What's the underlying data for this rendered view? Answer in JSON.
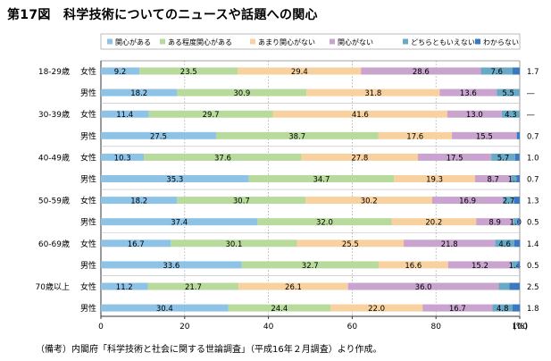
{
  "chart_data": {
    "type": "bar",
    "orientation": "horizontal",
    "stacked": true,
    "title": "第17図　科学技術についてのニュースや話題への関心",
    "xlabel": "",
    "ylabel": "",
    "xlim": [
      0,
      100
    ],
    "x_ticks": [
      "0",
      "20",
      "40",
      "60",
      "80",
      "100"
    ],
    "unit": "(%)",
    "legend_position": "top",
    "series": [
      {
        "name": "関心がある",
        "color": "#8ec3e6"
      },
      {
        "name": "ある程度関心がある",
        "color": "#b8da9c"
      },
      {
        "name": "あまり関心がない",
        "color": "#f7d2a0"
      },
      {
        "name": "関心がない",
        "color": "#c8a4cf"
      },
      {
        "name": "どちらともいえない",
        "color": "#6aa9c6"
      },
      {
        "name": "わからない",
        "color": "#3a78c0"
      }
    ],
    "groups": [
      {
        "age": "18-29歳",
        "rows": [
          {
            "gender": "女性",
            "values": [
              9.2,
              23.5,
              29.4,
              28.6,
              7.6,
              1.7
            ],
            "labels": [
              "9.2",
              "23.5",
              "29.4",
              "28.6",
              "7.6",
              "1.7"
            ]
          },
          {
            "gender": "男性",
            "values": [
              18.2,
              30.9,
              31.8,
              13.6,
              5.5,
              0
            ],
            "labels": [
              "18.2",
              "30.9",
              "31.8",
              "13.6",
              "5.5",
              "―"
            ]
          }
        ]
      },
      {
        "age": "30-39歳",
        "rows": [
          {
            "gender": "女性",
            "values": [
              11.4,
              29.7,
              41.6,
              13.0,
              4.3,
              0
            ],
            "labels": [
              "11.4",
              "29.7",
              "41.6",
              "13.0",
              "4.3",
              "―"
            ]
          },
          {
            "gender": "男性",
            "values": [
              27.5,
              38.7,
              17.6,
              15.5,
              0,
              0.7
            ],
            "labels": [
              "27.5",
              "38.7",
              "17.6",
              "15.5",
              "",
              "0.7"
            ]
          }
        ]
      },
      {
        "age": "40-49歳",
        "rows": [
          {
            "gender": "女性",
            "values": [
              10.3,
              37.6,
              27.8,
              17.5,
              5.7,
              1.0
            ],
            "labels": [
              "10.3",
              "37.6",
              "27.8",
              "17.5",
              "5.7",
              "1.0"
            ]
          },
          {
            "gender": "男性",
            "values": [
              35.3,
              34.7,
              19.3,
              8.7,
              1.3,
              0.7
            ],
            "labels": [
              "35.3",
              "34.7",
              "19.3",
              "8.7",
              "1.3",
              "0.7"
            ]
          }
        ]
      },
      {
        "age": "50-59歳",
        "rows": [
          {
            "gender": "女性",
            "values": [
              18.2,
              30.7,
              30.2,
              16.9,
              2.7,
              1.3
            ],
            "labels": [
              "18.2",
              "30.7",
              "30.2",
              "16.9",
              "2.7",
              "1.3"
            ]
          },
          {
            "gender": "男性",
            "values": [
              37.4,
              32.0,
              20.2,
              8.9,
              1.0,
              0.5
            ],
            "labels": [
              "37.4",
              "32.0",
              "20.2",
              "8.9",
              "1.0",
              "0.5"
            ]
          }
        ]
      },
      {
        "age": "60-69歳",
        "rows": [
          {
            "gender": "女性",
            "values": [
              16.7,
              30.1,
              25.5,
              21.8,
              4.6,
              1.4
            ],
            "labels": [
              "16.7",
              "30.1",
              "25.5",
              "21.8",
              "4.6",
              "1.4"
            ]
          },
          {
            "gender": "男性",
            "values": [
              33.6,
              32.7,
              16.6,
              15.2,
              1.4,
              0.5
            ],
            "labels": [
              "33.6",
              "32.7",
              "16.6",
              "15.2",
              "1.4",
              "0.5"
            ]
          }
        ]
      },
      {
        "age": "70歳以上",
        "rows": [
          {
            "gender": "女性",
            "values": [
              11.2,
              21.7,
              26.1,
              36.0,
              2.5,
              2.5
            ],
            "labels": [
              "11.2",
              "21.7",
              "26.1",
              "36.0",
              "",
              "2.5"
            ]
          },
          {
            "gender": "男性",
            "values": [
              30.4,
              24.4,
              22.0,
              16.7,
              4.8,
              1.8
            ],
            "labels": [
              "30.4",
              "24.4",
              "22.0",
              "16.7",
              "4.8",
              "1.8"
            ]
          }
        ]
      }
    ]
  },
  "footnote": "（備考）内閣府「科学技術と社会に関する世論調査」（平成16年２月調査）より作成。"
}
